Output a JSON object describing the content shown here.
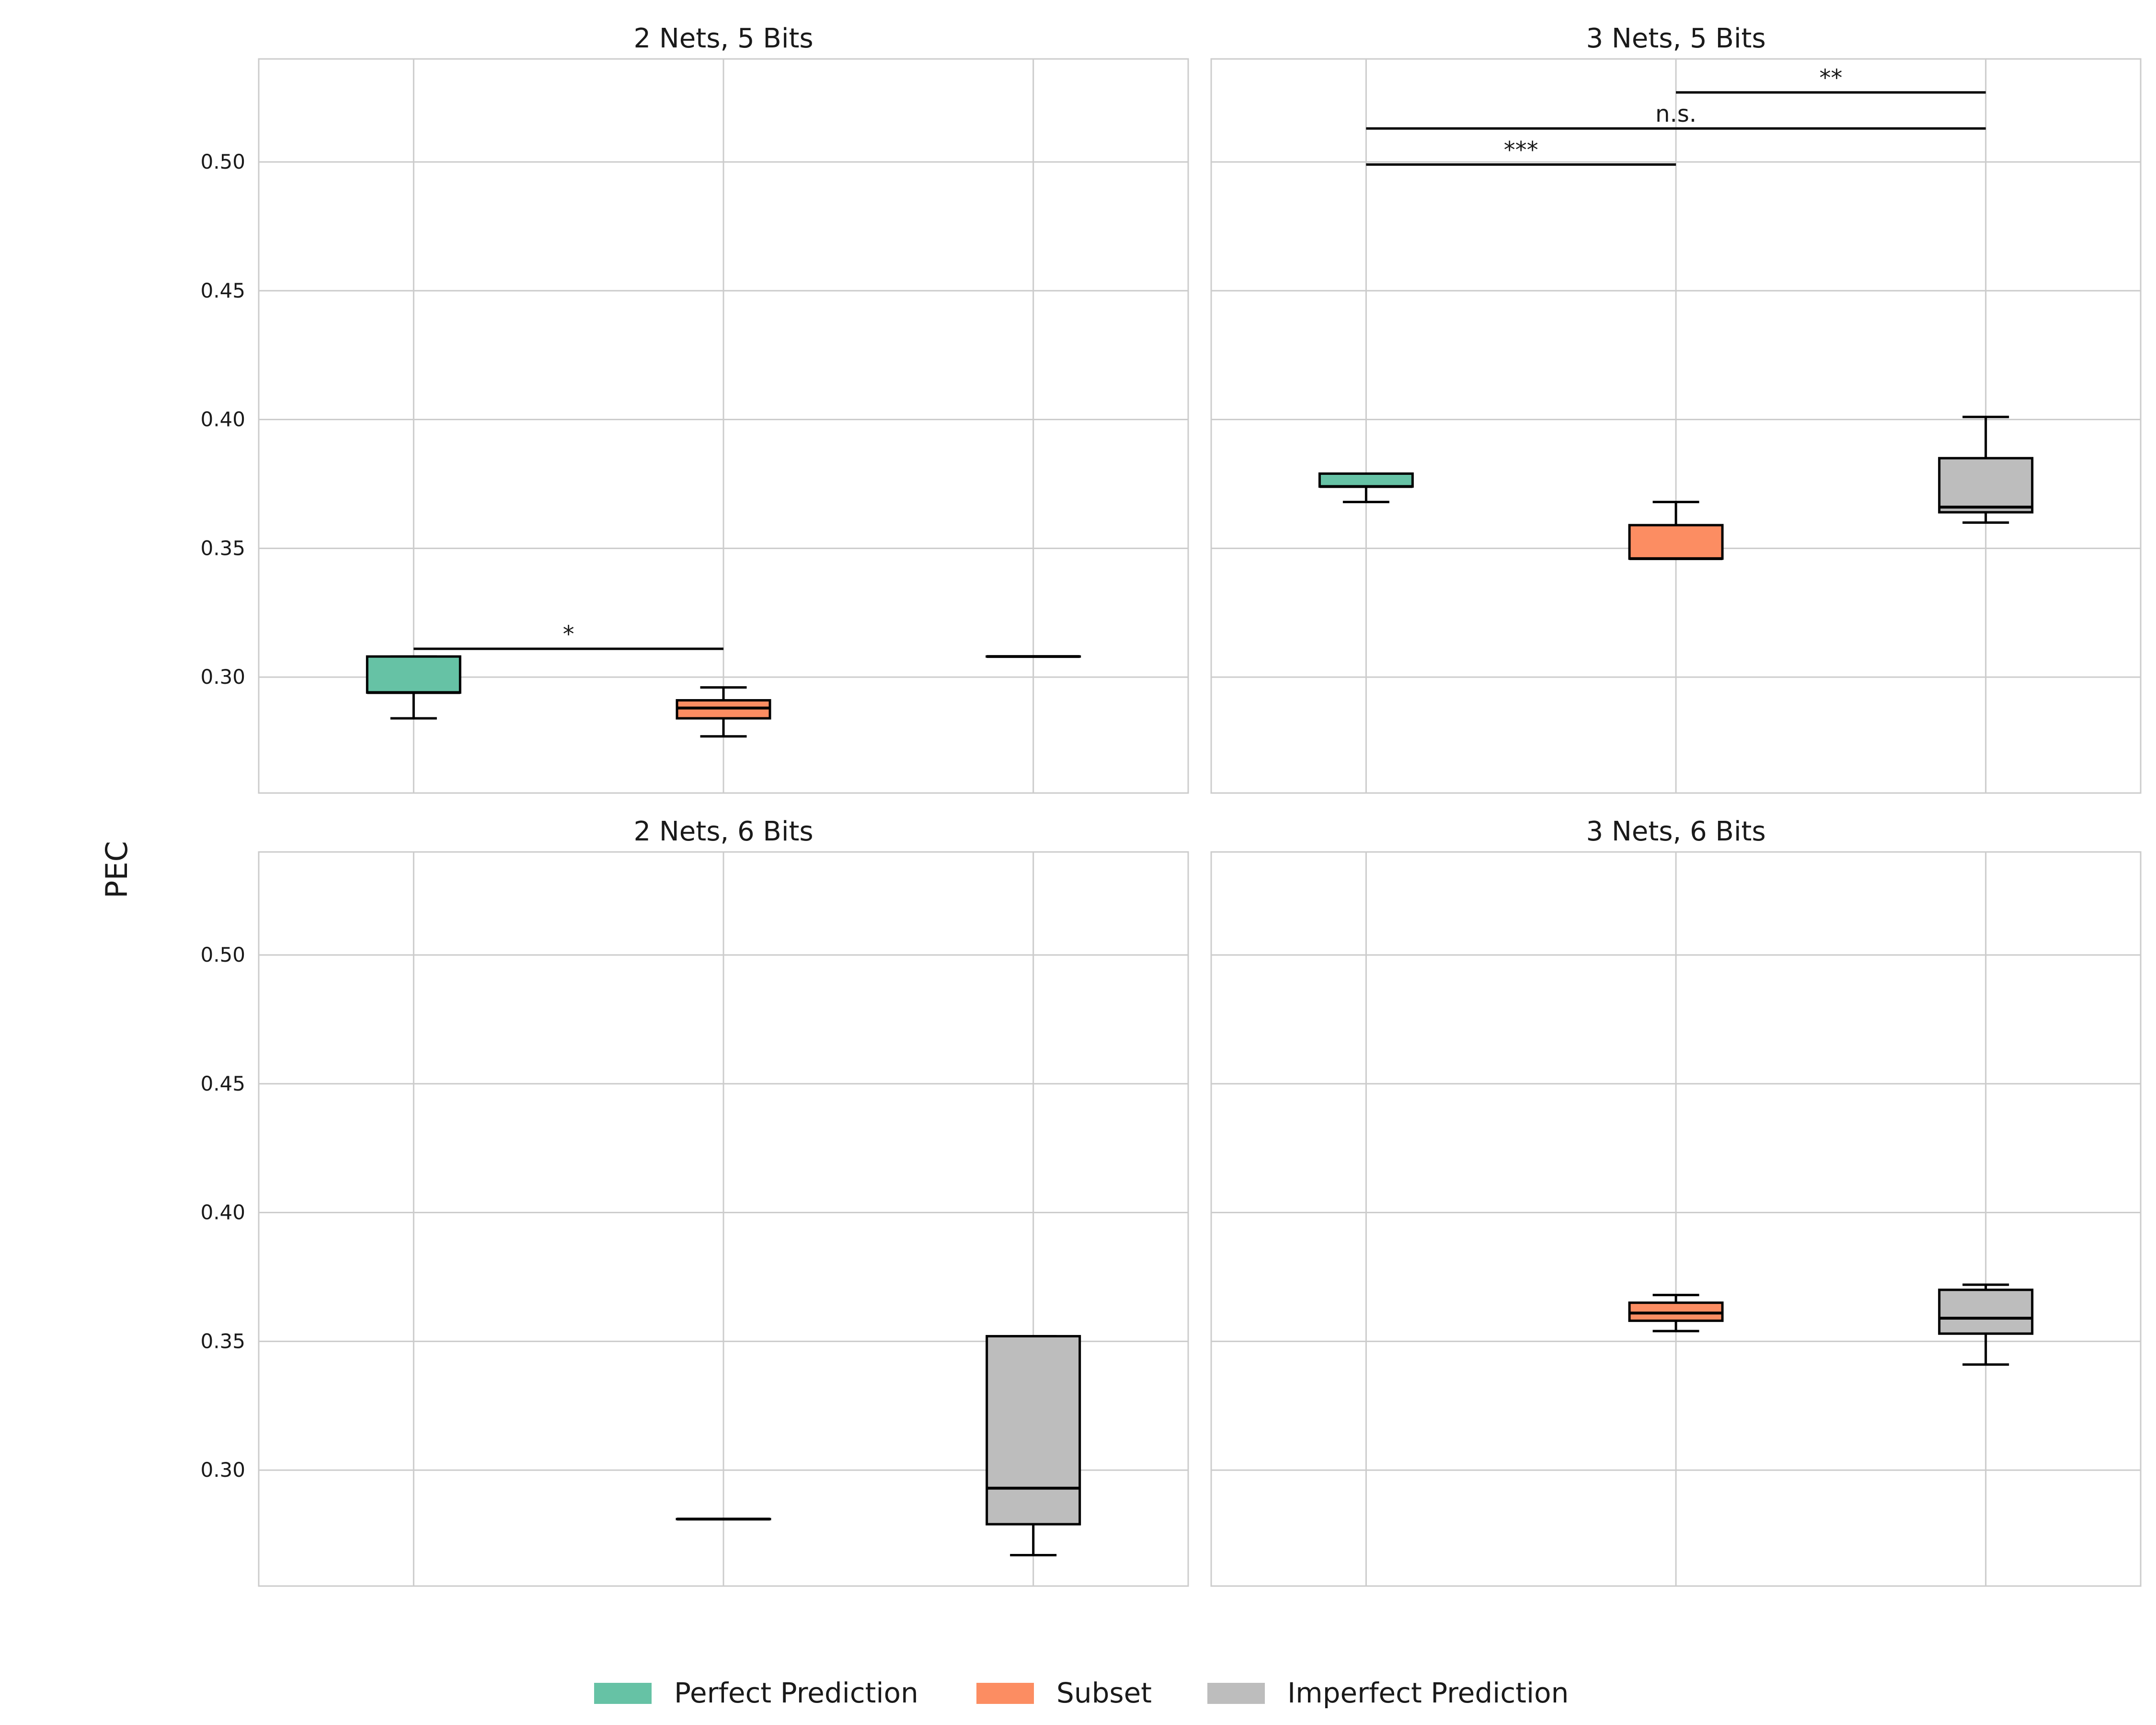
{
  "chart_data": {
    "type": "boxplot",
    "ylabel": "PEC",
    "ylim": [
      0.255,
      0.54
    ],
    "yticks": [
      0.3,
      0.35,
      0.4,
      0.45,
      0.5
    ],
    "ytick_labels": [
      "0.30",
      "0.35",
      "0.40",
      "0.45",
      "0.50"
    ],
    "categories": [
      "Perfect Prediction",
      "Subset",
      "Imperfect Prediction"
    ],
    "colors": {
      "Perfect Prediction": "#66c2a5",
      "Subset": "#fc8d62",
      "Imperfect Prediction": "#bdbdbd"
    },
    "grid": true,
    "legend": {
      "position": "bottom-center",
      "items": [
        "Perfect Prediction",
        "Subset",
        "Imperfect Prediction"
      ]
    },
    "panels": [
      {
        "title": "2 Nets, 5 Bits",
        "boxes": [
          {
            "category": "Perfect Prediction",
            "whisker_low": 0.284,
            "q1": 0.294,
            "median": 0.294,
            "q3": 0.308,
            "whisker_high": 0.308
          },
          {
            "category": "Subset",
            "whisker_low": 0.277,
            "q1": 0.284,
            "median": 0.288,
            "q3": 0.291,
            "whisker_high": 0.296
          },
          {
            "category": "Imperfect Prediction",
            "whisker_low": 0.308,
            "q1": 0.308,
            "median": 0.308,
            "q3": 0.308,
            "whisker_high": 0.308
          }
        ],
        "significance": [
          {
            "from": "Perfect Prediction",
            "to": "Subset",
            "y": 0.311,
            "label": "*"
          }
        ]
      },
      {
        "title": "3 Nets, 5 Bits",
        "boxes": [
          {
            "category": "Perfect Prediction",
            "whisker_low": 0.368,
            "q1": 0.374,
            "median": 0.374,
            "q3": 0.379,
            "whisker_high": 0.379
          },
          {
            "category": "Subset",
            "whisker_low": 0.346,
            "q1": 0.346,
            "median": 0.346,
            "q3": 0.359,
            "whisker_high": 0.368
          },
          {
            "category": "Imperfect Prediction",
            "whisker_low": 0.36,
            "q1": 0.364,
            "median": 0.366,
            "q3": 0.385,
            "whisker_high": 0.401
          }
        ],
        "significance": [
          {
            "from": "Perfect Prediction",
            "to": "Subset",
            "y": 0.499,
            "label": "***"
          },
          {
            "from": "Perfect Prediction",
            "to": "Imperfect Prediction",
            "y": 0.513,
            "label": "n.s."
          },
          {
            "from": "Subset",
            "to": "Imperfect Prediction",
            "y": 0.527,
            "label": "**"
          }
        ]
      },
      {
        "title": "2 Nets, 6 Bits",
        "boxes": [
          {
            "category": "Subset",
            "whisker_low": 0.281,
            "q1": 0.281,
            "median": 0.281,
            "q3": 0.281,
            "whisker_high": 0.281
          },
          {
            "category": "Imperfect Prediction",
            "whisker_low": 0.267,
            "q1": 0.279,
            "median": 0.293,
            "q3": 0.352,
            "whisker_high": 0.352
          }
        ],
        "significance": []
      },
      {
        "title": "3 Nets, 6 Bits",
        "boxes": [
          {
            "category": "Subset",
            "whisker_low": 0.354,
            "q1": 0.358,
            "median": 0.361,
            "q3": 0.365,
            "whisker_high": 0.368
          },
          {
            "category": "Imperfect Prediction",
            "whisker_low": 0.341,
            "q1": 0.353,
            "median": 0.359,
            "q3": 0.37,
            "whisker_high": 0.372
          }
        ],
        "significance": []
      }
    ]
  }
}
